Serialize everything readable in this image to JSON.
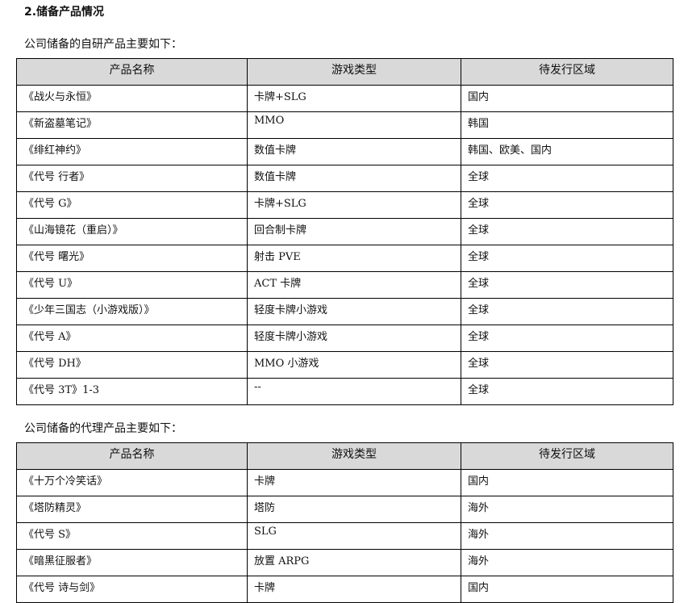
{
  "section_title": "2.储备产品情况",
  "self_intro": "公司储备的自研产品主要如下：",
  "agency_intro": "公司储备的代理产品主要如下：",
  "headers": [
    "产品名称",
    "游戏类型",
    "待发行区域"
  ],
  "self_products": [
    [
      "《战火与永恒》",
      "卡牌+SLG",
      "国内"
    ],
    [
      "《新盗墓笔记》",
      "MMO",
      "韩国"
    ],
    [
      "《绯红神约》",
      "数值卡牌",
      "韩国、欧美、国内"
    ],
    [
      "《代号 行者》",
      "数值卡牌",
      "全球"
    ],
    [
      "《代号 G》",
      "卡牌+SLG",
      "全球"
    ],
    [
      "《山海镜花（重启）》",
      "回合制卡牌",
      "全球"
    ],
    [
      "《代号 曙光》",
      "射击 PVE",
      "全球"
    ],
    [
      "《代号 U》",
      "ACT 卡牌",
      "全球"
    ],
    [
      "《少年三国志（小游戏版）》",
      "轻度卡牌小游戏",
      "全球"
    ],
    [
      "《代号 A》",
      "轻度卡牌小游戏",
      "全球"
    ],
    [
      "《代号 DH》",
      "MMO 小游戏",
      "全球"
    ],
    [
      "《代号 3T》1-3",
      "--",
      "全球"
    ]
  ],
  "agency_products": [
    [
      "《十万个冷笑话》",
      "卡牌",
      "国内"
    ],
    [
      "《塔防精灵》",
      "塔防",
      "海外"
    ],
    [
      "《代号 S》",
      "SLG",
      "海外"
    ],
    [
      "《暗黑征服者》",
      "放置 ARPG",
      "海外"
    ],
    [
      "《代号 诗与剑》",
      "卡牌",
      "国内"
    ]
  ]
}
